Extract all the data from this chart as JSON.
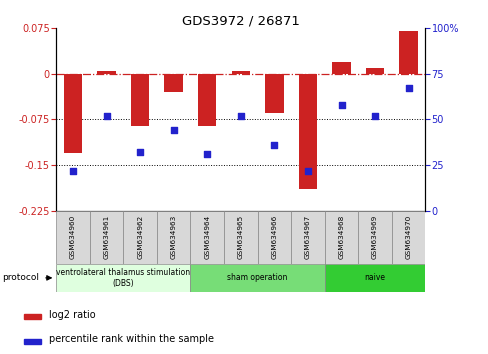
{
  "title": "GDS3972 / 26871",
  "samples": [
    "GSM634960",
    "GSM634961",
    "GSM634962",
    "GSM634963",
    "GSM634964",
    "GSM634965",
    "GSM634966",
    "GSM634967",
    "GSM634968",
    "GSM634969",
    "GSM634970"
  ],
  "log2_ratio": [
    -0.13,
    0.005,
    -0.085,
    -0.03,
    -0.085,
    0.005,
    -0.065,
    -0.19,
    0.02,
    0.01,
    0.07
  ],
  "percentile_rank": [
    22,
    52,
    32,
    44,
    31,
    52,
    36,
    22,
    58,
    52,
    67
  ],
  "ylim_left": [
    -0.225,
    0.075
  ],
  "ylim_right": [
    0,
    100
  ],
  "yticks_left": [
    0.075,
    0,
    -0.075,
    -0.15,
    -0.225
  ],
  "yticks_right": [
    100,
    75,
    50,
    25,
    0
  ],
  "hlines": [
    -0.075,
    -0.15
  ],
  "bar_color": "#cc2222",
  "dot_color": "#2222cc",
  "dashed_line_color": "#cc2222",
  "protocol_groups": [
    {
      "label": "ventrolateral thalamus stimulation\n(DBS)",
      "start": 0,
      "end": 3,
      "color": "#dfffdf"
    },
    {
      "label": "sham operation",
      "start": 4,
      "end": 7,
      "color": "#77dd77"
    },
    {
      "label": "naive",
      "start": 8,
      "end": 10,
      "color": "#33cc33"
    }
  ],
  "legend_items": [
    {
      "label": "log2 ratio",
      "color": "#cc2222"
    },
    {
      "label": "percentile rank within the sample",
      "color": "#2222cc"
    }
  ],
  "protocol_label": "protocol"
}
